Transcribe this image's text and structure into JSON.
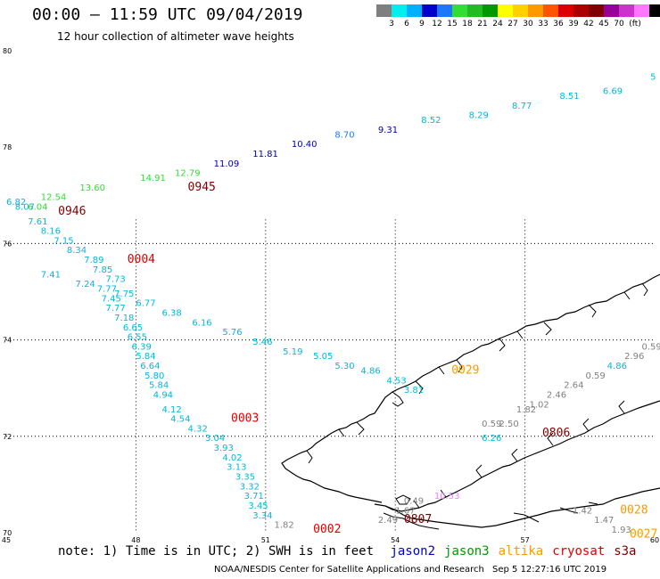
{
  "title": "00:00 – 11:59 UTC 09/04/2019",
  "subtitle": "12 hour collection of altimeter wave heights",
  "colorbar": {
    "colors": [
      "#7f7f7f",
      "#00eeee",
      "#00b0ff",
      "#0000cc",
      "#1e78ff",
      "#33dd33",
      "#22bb22",
      "#009900",
      "#ffff00",
      "#ffd000",
      "#ff9900",
      "#ff5500",
      "#dd0000",
      "#aa0000",
      "#800000",
      "#990099",
      "#cc33cc",
      "#ff77ff",
      "#000000"
    ],
    "labels": [
      "3",
      "6",
      "9",
      "12",
      "15",
      "18",
      "21",
      "24",
      "27",
      "30",
      "33",
      "36",
      "39",
      "42",
      "45",
      "70"
    ],
    "unit": "(ft)"
  },
  "axes": {
    "lat_labels": [
      "80",
      "78",
      "76",
      "74",
      "72",
      "70"
    ],
    "lon_labels": [
      "45",
      "48",
      "51",
      "54",
      "57",
      "60"
    ]
  },
  "observations": [
    {
      "v": "5",
      "lon": 59.9,
      "lat": 79.4,
      "c": "#00b8dd"
    },
    {
      "v": "6.69",
      "lon": 58.8,
      "lat": 79.1,
      "c": "#00b8dd"
    },
    {
      "v": "8.51",
      "lon": 57.8,
      "lat": 79.0,
      "c": "#00b8dd"
    },
    {
      "v": "8.77",
      "lon": 56.7,
      "lat": 78.8,
      "c": "#00b8dd"
    },
    {
      "v": "8.29",
      "lon": 55.7,
      "lat": 78.6,
      "c": "#00b8dd"
    },
    {
      "v": "8.52",
      "lon": 54.6,
      "lat": 78.5,
      "c": "#00b8dd"
    },
    {
      "v": "9.31",
      "lon": 53.6,
      "lat": 78.3,
      "c": "#0000aa"
    },
    {
      "v": "8.70",
      "lon": 52.6,
      "lat": 78.2,
      "c": "#1e78ff"
    },
    {
      "v": "10.40",
      "lon": 51.6,
      "lat": 78.0,
      "c": "#0000aa"
    },
    {
      "v": "11.81",
      "lon": 50.7,
      "lat": 77.8,
      "c": "#0000aa"
    },
    {
      "v": "11.09",
      "lon": 49.8,
      "lat": 77.6,
      "c": "#0000aa"
    },
    {
      "v": "12.79",
      "lon": 48.9,
      "lat": 77.4,
      "c": "#33dd33"
    },
    {
      "v": "14.91",
      "lon": 48.1,
      "lat": 77.3,
      "c": "#33dd33"
    },
    {
      "v": "13.60",
      "lon": 46.7,
      "lat": 77.1,
      "c": "#33dd33"
    },
    {
      "v": "12.54",
      "lon": 45.8,
      "lat": 76.9,
      "c": "#33dd33"
    },
    {
      "v": "6.82",
      "lon": 45.0,
      "lat": 76.8,
      "c": "#00b8dd"
    },
    {
      "v": "6.04",
      "lon": 45.5,
      "lat": 76.7,
      "c": "#33dd33"
    },
    {
      "v": "8.07",
      "lon": 45.2,
      "lat": 76.7,
      "c": "#00b8dd"
    },
    {
      "v": "7.61",
      "lon": 45.5,
      "lat": 76.4,
      "c": "#00b8dd"
    },
    {
      "v": "8.16",
      "lon": 45.8,
      "lat": 76.2,
      "c": "#00b8dd"
    },
    {
      "v": "7.15",
      "lon": 46.1,
      "lat": 76.0,
      "c": "#00b8dd"
    },
    {
      "v": "8.34",
      "lon": 46.4,
      "lat": 75.8,
      "c": "#00b8dd"
    },
    {
      "v": "7.89",
      "lon": 46.8,
      "lat": 75.6,
      "c": "#00b8dd"
    },
    {
      "v": "7.85",
      "lon": 47.0,
      "lat": 75.4,
      "c": "#00b8dd"
    },
    {
      "v": "7.41",
      "lon": 45.8,
      "lat": 75.3,
      "c": "#00b8dd"
    },
    {
      "v": "7.73",
      "lon": 47.3,
      "lat": 75.2,
      "c": "#00b8dd"
    },
    {
      "v": "7.24",
      "lon": 46.6,
      "lat": 75.1,
      "c": "#00b8dd"
    },
    {
      "v": "7.77",
      "lon": 47.1,
      "lat": 75.0,
      "c": "#00b8dd"
    },
    {
      "v": "7.75",
      "lon": 47.5,
      "lat": 74.9,
      "c": "#00b8dd"
    },
    {
      "v": "7.45",
      "lon": 47.2,
      "lat": 74.8,
      "c": "#00b8dd"
    },
    {
      "v": "6.77",
      "lon": 48.0,
      "lat": 74.7,
      "c": "#00b8dd"
    },
    {
      "v": "7.77",
      "lon": 47.3,
      "lat": 74.6,
      "c": "#00b8dd"
    },
    {
      "v": "6.38",
      "lon": 48.6,
      "lat": 74.5,
      "c": "#00b8dd"
    },
    {
      "v": "7.18",
      "lon": 47.5,
      "lat": 74.4,
      "c": "#00b8dd"
    },
    {
      "v": "6.16",
      "lon": 49.3,
      "lat": 74.3,
      "c": "#00b8dd"
    },
    {
      "v": "6.65",
      "lon": 47.7,
      "lat": 74.2,
      "c": "#00b8dd"
    },
    {
      "v": "5.76",
      "lon": 50.0,
      "lat": 74.1,
      "c": "#00b8dd"
    },
    {
      "v": "6.55",
      "lon": 47.8,
      "lat": 74.0,
      "c": "#00b8dd"
    },
    {
      "v": "5.46",
      "lon": 50.7,
      "lat": 73.9,
      "c": "#00b8dd"
    },
    {
      "v": "6.39",
      "lon": 47.9,
      "lat": 73.8,
      "c": "#00b8dd"
    },
    {
      "v": "5.19",
      "lon": 51.4,
      "lat": 73.7,
      "c": "#00b8dd"
    },
    {
      "v": "5.84",
      "lon": 48.0,
      "lat": 73.6,
      "c": "#00b8dd"
    },
    {
      "v": "5.05",
      "lon": 52.1,
      "lat": 73.6,
      "c": "#00b8dd"
    },
    {
      "v": "5.30",
      "lon": 52.6,
      "lat": 73.4,
      "c": "#00b8dd"
    },
    {
      "v": "6.64",
      "lon": 48.1,
      "lat": 73.4,
      "c": "#00b8dd"
    },
    {
      "v": "4.86",
      "lon": 53.2,
      "lat": 73.3,
      "c": "#00b8dd"
    },
    {
      "v": "5.80",
      "lon": 48.2,
      "lat": 73.2,
      "c": "#00b8dd"
    },
    {
      "v": "4.53",
      "lon": 53.8,
      "lat": 73.1,
      "c": "#00b8dd"
    },
    {
      "v": "5.84",
      "lon": 48.3,
      "lat": 73.0,
      "c": "#00b8dd"
    },
    {
      "v": "3.81",
      "lon": 54.2,
      "lat": 72.9,
      "c": "#00b8dd"
    },
    {
      "v": "4.94",
      "lon": 48.4,
      "lat": 72.8,
      "c": "#00b8dd"
    },
    {
      "v": "4.12",
      "lon": 48.6,
      "lat": 72.5,
      "c": "#00b8dd"
    },
    {
      "v": "4.54",
      "lon": 48.8,
      "lat": 72.3,
      "c": "#00b8dd"
    },
    {
      "v": "4.32",
      "lon": 49.2,
      "lat": 72.1,
      "c": "#00b8dd"
    },
    {
      "v": "3.04",
      "lon": 49.6,
      "lat": 71.9,
      "c": "#00b8dd"
    },
    {
      "v": "3.93",
      "lon": 49.8,
      "lat": 71.7,
      "c": "#00b8dd"
    },
    {
      "v": "4.02",
      "lon": 50.0,
      "lat": 71.5,
      "c": "#00b8dd"
    },
    {
      "v": "3.13",
      "lon": 50.1,
      "lat": 71.3,
      "c": "#00b8dd"
    },
    {
      "v": "3.35",
      "lon": 50.3,
      "lat": 71.1,
      "c": "#00b8dd"
    },
    {
      "v": "3.32",
      "lon": 50.4,
      "lat": 70.9,
      "c": "#00b8dd"
    },
    {
      "v": "3.71",
      "lon": 50.5,
      "lat": 70.7,
      "c": "#00b8dd"
    },
    {
      "v": "3.45",
      "lon": 50.6,
      "lat": 70.5,
      "c": "#00b8dd"
    },
    {
      "v": "3.34",
      "lon": 50.7,
      "lat": 70.3,
      "c": "#00b8dd"
    },
    {
      "v": "1.82",
      "lon": 51.2,
      "lat": 70.1,
      "c": "#808080"
    },
    {
      "v": "0.59",
      "lon": 59.7,
      "lat": 73.8,
      "c": "#808080"
    },
    {
      "v": "2.96",
      "lon": 59.3,
      "lat": 73.6,
      "c": "#808080"
    },
    {
      "v": "4.86",
      "lon": 58.9,
      "lat": 73.4,
      "c": "#00b8dd"
    },
    {
      "v": "0.59",
      "lon": 58.4,
      "lat": 73.2,
      "c": "#808080"
    },
    {
      "v": "2.64",
      "lon": 57.9,
      "lat": 73.0,
      "c": "#808080"
    },
    {
      "v": "2.46",
      "lon": 57.5,
      "lat": 72.8,
      "c": "#808080"
    },
    {
      "v": "1.02",
      "lon": 57.1,
      "lat": 72.6,
      "c": "#808080"
    },
    {
      "v": "1.82",
      "lon": 56.8,
      "lat": 72.5,
      "c": "#808080"
    },
    {
      "v": "2.50",
      "lon": 56.4,
      "lat": 72.2,
      "c": "#808080"
    },
    {
      "v": "0.59",
      "lon": 56.0,
      "lat": 72.2,
      "c": "#808080"
    },
    {
      "v": "6.26",
      "lon": 56.0,
      "lat": 71.9,
      "c": "#00b8dd"
    },
    {
      "v": "10.53",
      "lon": 54.9,
      "lat": 70.7,
      "c": "#ff77ff"
    },
    {
      "v": "0.49",
      "lon": 54.2,
      "lat": 70.6,
      "c": "#808080"
    },
    {
      "v": "1.67",
      "lon": 54.0,
      "lat": 70.4,
      "c": "#808080"
    },
    {
      "v": "2.49",
      "lon": 53.6,
      "lat": 70.2,
      "c": "#808080"
    },
    {
      "v": "1.42",
      "lon": 58.1,
      "lat": 70.4,
      "c": "#808080"
    },
    {
      "v": "1.47",
      "lon": 58.6,
      "lat": 70.2,
      "c": "#808080"
    },
    {
      "v": "1.93",
      "lon": 59.0,
      "lat": 70.0,
      "c": "#808080"
    }
  ],
  "time_labels": [
    {
      "v": "0945",
      "lon": 49.2,
      "lat": 77.1,
      "c": "#800000"
    },
    {
      "v": "0946",
      "lon": 46.2,
      "lat": 76.6,
      "c": "#800000"
    },
    {
      "v": "0004",
      "lon": 47.8,
      "lat": 75.6,
      "c": "#dd0000"
    },
    {
      "v": "0029",
      "lon": 55.3,
      "lat": 73.3,
      "c": "#ff9900"
    },
    {
      "v": "0003",
      "lon": 50.2,
      "lat": 72.3,
      "c": "#dd0000"
    },
    {
      "v": "0806",
      "lon": 57.4,
      "lat": 72.0,
      "c": "#800000"
    },
    {
      "v": "0807",
      "lon": 54.2,
      "lat": 70.2,
      "c": "#800000"
    },
    {
      "v": "0002",
      "lon": 52.1,
      "lat": 70.0,
      "c": "#dd0000"
    },
    {
      "v": "0028",
      "lon": 59.2,
      "lat": 70.4,
      "c": "#ff9900"
    },
    {
      "v": "0027",
      "lon": 59.6,
      "lat": 69.9,
      "c": "#ff9900"
    }
  ],
  "note": {
    "text": "note: 1) Time is in UTC; 2) SWH is in feet",
    "missions": [
      {
        "name": "jason2",
        "color": "#0000cc"
      },
      {
        "name": "jason3",
        "color": "#009900"
      },
      {
        "name": "altika",
        "color": "#ff9900"
      },
      {
        "name": "cryosat",
        "color": "#dd0000"
      },
      {
        "name": "s3a",
        "color": "#800000"
      }
    ]
  },
  "credit": "NOAA/NESDIS Center for Satellite Applications and Research",
  "timestamp": "Sep  5 12:27:16 UTC 2019"
}
